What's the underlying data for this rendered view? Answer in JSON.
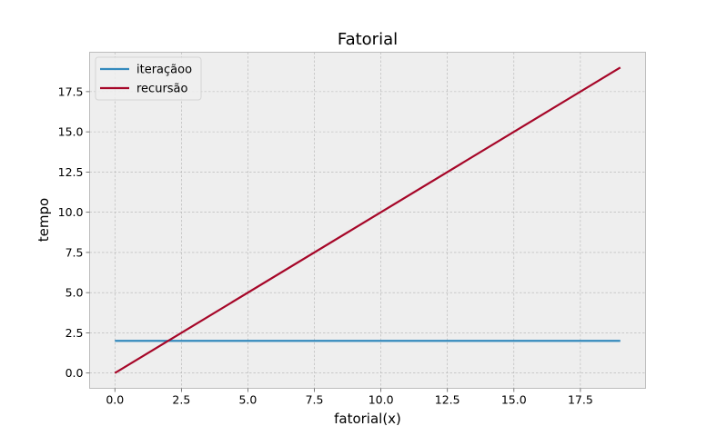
{
  "chart_data": {
    "type": "line",
    "title": "Fatorial",
    "xlabel": "fatorial(x)",
    "ylabel": "tempo",
    "xlim": [
      -0.95,
      19.95
    ],
    "ylim": [
      -0.95,
      19.95
    ],
    "xticks": [
      0.0,
      2.5,
      5.0,
      7.5,
      10.0,
      12.5,
      15.0,
      17.5
    ],
    "xtick_labels": [
      "0.0",
      "2.5",
      "5.0",
      "7.5",
      "10.0",
      "12.5",
      "15.0",
      "17.5"
    ],
    "yticks": [
      0.0,
      2.5,
      5.0,
      7.5,
      10.0,
      12.5,
      15.0,
      17.5
    ],
    "ytick_labels": [
      "0.0",
      "2.5",
      "5.0",
      "7.5",
      "10.0",
      "12.5",
      "15.0",
      "17.5"
    ],
    "grid": true,
    "legend_position": "upper-left",
    "background_color": "#EEEEEE",
    "grid_color": "#B2B2B2",
    "series": [
      {
        "name": "iteraçãoo",
        "color": "#348ABD",
        "x": [
          0,
          19
        ],
        "y": [
          2,
          2
        ]
      },
      {
        "name": "recursão",
        "color": "#A60628",
        "x": [
          0,
          19
        ],
        "y": [
          0,
          19
        ]
      }
    ]
  }
}
